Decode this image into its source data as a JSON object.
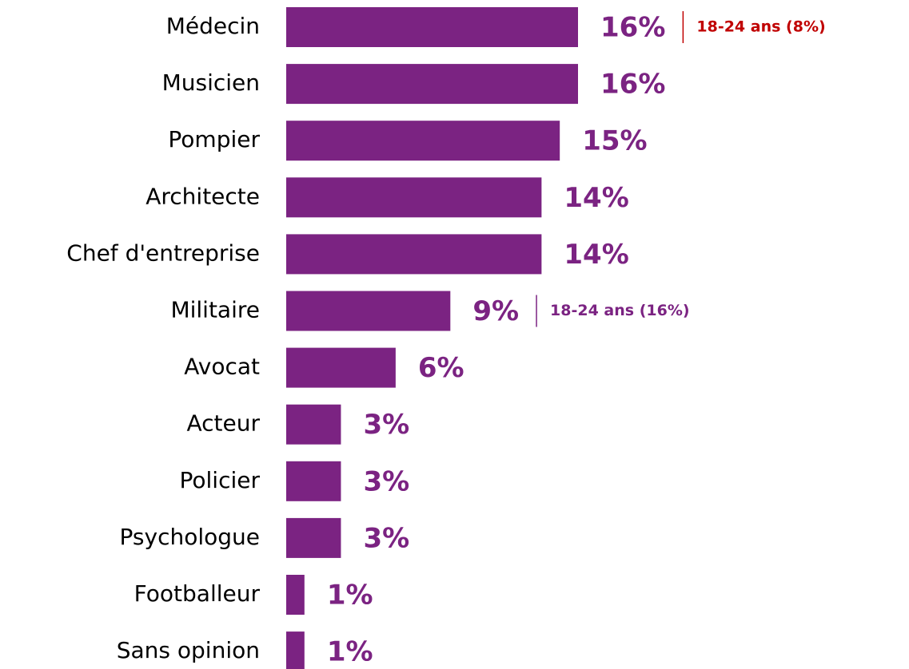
{
  "chart_data": {
    "type": "bar",
    "orientation": "horizontal",
    "categories": [
      "Médecin",
      "Musicien",
      "Pompier",
      "Architecte",
      "Chef d'entreprise",
      "Militaire",
      "Avocat",
      "Acteur",
      "Policier",
      "Psychologue",
      "Footballeur",
      "Sans opinion"
    ],
    "values": [
      16,
      16,
      15,
      14,
      14,
      9,
      6,
      3,
      3,
      3,
      1,
      1
    ],
    "value_labels": [
      "16%",
      "16%",
      "15%",
      "14%",
      "14%",
      "9%",
      "6%",
      "3%",
      "3%",
      "3%",
      "1%",
      "1%"
    ],
    "color": "#7b2382",
    "annotations": [
      {
        "category": "Médecin",
        "text": "18-24 ans (8%)",
        "color": "#c00000"
      },
      {
        "category": "Militaire",
        "text": "18-24 ans (16%)",
        "color": "#7b2382"
      }
    ]
  }
}
